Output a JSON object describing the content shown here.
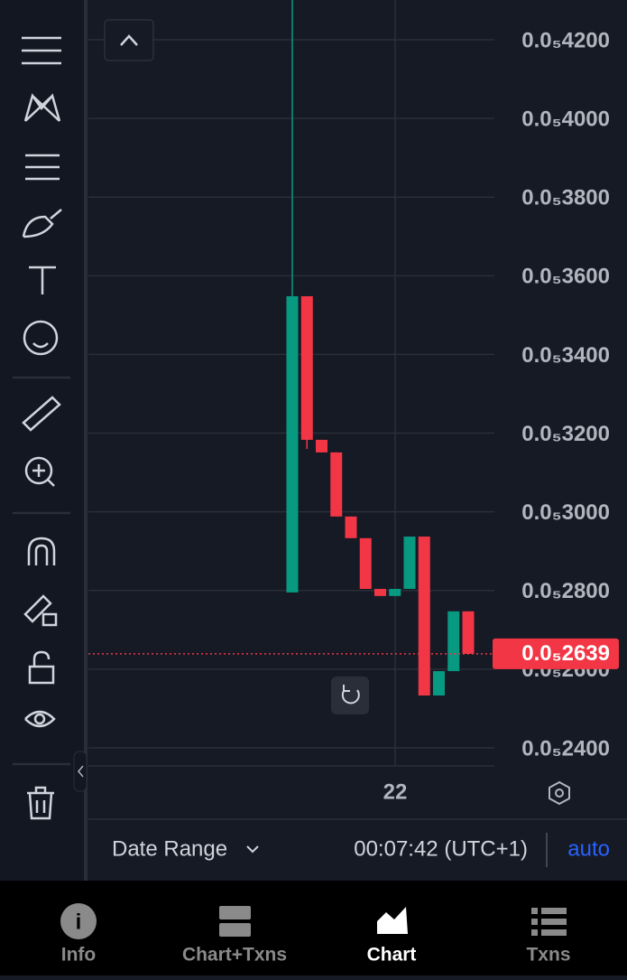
{
  "chart_data": {
    "type": "candlestick",
    "ylim": [
      2.354e-06,
      4.301e-06
    ],
    "yticks": [
      {
        "value": 4.2e-06,
        "label": "0.0₅4200"
      },
      {
        "value": 4e-06,
        "label": "0.0₅4000"
      },
      {
        "value": 3.8e-06,
        "label": "0.0₅3800"
      },
      {
        "value": 3.6e-06,
        "label": "0.0₅3600"
      },
      {
        "value": 3.4e-06,
        "label": "0.0₅3400"
      },
      {
        "value": 3.2e-06,
        "label": "0.0₅3200"
      },
      {
        "value": 3e-06,
        "label": "0.0₅3000"
      },
      {
        "value": 2.8e-06,
        "label": "0.0₅2800"
      },
      {
        "value": 2.6e-06,
        "label": "0.0₅2600"
      },
      {
        "value": 2.4e-06,
        "label": "0.0₅2400"
      }
    ],
    "x_label": "22",
    "up_color": "#089981",
    "down_color": "#f23645",
    "series": [
      {
        "open": [
          2.795e-06,
          3.548e-06,
          3.183e-06,
          3.151e-06,
          2.988e-06,
          2.933e-06,
          2.804e-06,
          2.786e-06,
          2.804e-06,
          2.937e-06,
          2.533e-06,
          2.595e-06,
          2.747e-06
        ],
        "high": [
          4.301e-06,
          3.548e-06,
          3.183e-06,
          3.151e-06,
          2.988e-06,
          2.933e-06,
          2.804e-06,
          2.804e-06,
          2.937e-06,
          2.937e-06,
          2.595e-06,
          2.747e-06,
          2.747e-06
        ],
        "low": [
          2.795e-06,
          3.16e-06,
          3.151e-06,
          2.988e-06,
          2.933e-06,
          2.804e-06,
          2.786e-06,
          2.786e-06,
          2.804e-06,
          2.533e-06,
          2.533e-06,
          2.595e-06,
          2.639e-06
        ],
        "close": [
          3.548e-06,
          3.183e-06,
          3.151e-06,
          2.988e-06,
          2.933e-06,
          2.804e-06,
          2.786e-06,
          2.804e-06,
          2.937e-06,
          2.533e-06,
          2.595e-06,
          2.747e-06,
          2.639e-06
        ]
      }
    ],
    "last_price": {
      "value": 2.639e-06,
      "label": "0.0₅2639"
    }
  },
  "footer": {
    "date_range": "Date Range",
    "time": "00:07:42 (UTC+1)",
    "auto": "auto"
  },
  "tabs": [
    "Info",
    "Chart+Txns",
    "Chart",
    "Txns"
  ]
}
